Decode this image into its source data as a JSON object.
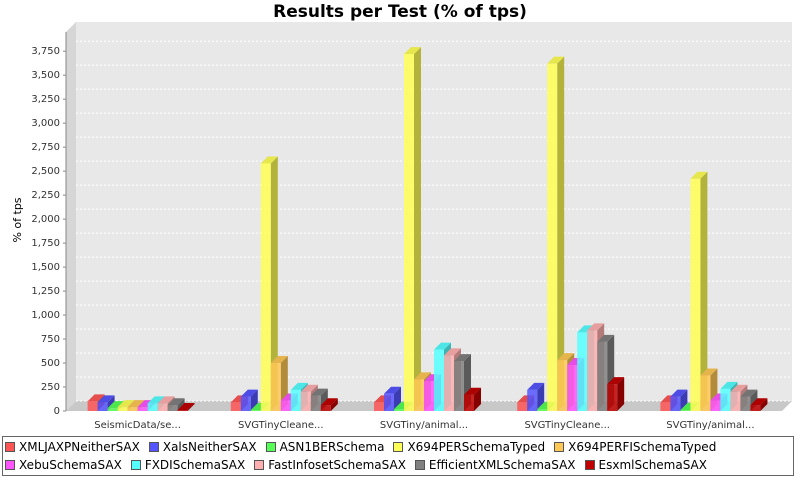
{
  "chart_data": {
    "type": "bar3d",
    "title": "Results per Test (% of tps)",
    "y_label": "% of tps",
    "categories": [
      "SeismicData/se...",
      "SVGTinyCleane...",
      "SVGTiny/animal...",
      "SVGTinyCleane...",
      "SVGTiny/animal..."
    ],
    "series": [
      {
        "name": "XMLJAXPNeitherSAX",
        "color": "#ff5555",
        "values": [
          100,
          90,
          90,
          90,
          90
        ]
      },
      {
        "name": "XalsNeitherSAX",
        "color": "#5555ff",
        "values": [
          90,
          150,
          180,
          220,
          150
        ]
      },
      {
        "name": "ASN1BERSchema",
        "color": "#55ff55",
        "values": [
          30,
          10,
          20,
          20,
          10
        ]
      },
      {
        "name": "X694PERSchemaTyped",
        "color": "#ffff55",
        "values": [
          40,
          2580,
          3720,
          3620,
          2420
        ]
      },
      {
        "name": "X694PERFISchemaTyped",
        "color": "#ffc855",
        "values": [
          40,
          500,
          330,
          530,
          370
        ]
      },
      {
        "name": "XebuSchemaSAX",
        "color": "#ff55ff",
        "values": [
          40,
          110,
          310,
          480,
          110
        ]
      },
      {
        "name": "FXDISchemaSAX",
        "color": "#55ffff",
        "values": [
          80,
          220,
          640,
          820,
          230
        ]
      },
      {
        "name": "FastInfosetSchemaSAX",
        "color": "#ffafaf",
        "values": [
          80,
          200,
          580,
          840,
          200
        ]
      },
      {
        "name": "EfficientXMLSchemaSAX",
        "color": "#808080",
        "values": [
          60,
          160,
          520,
          720,
          150
        ]
      },
      {
        "name": "EsxmlSchemaSAX",
        "color": "#c00000",
        "values": [
          10,
          60,
          170,
          280,
          60
        ]
      }
    ],
    "ylim": [
      0,
      3950
    ],
    "yticks": [
      0,
      250,
      500,
      750,
      {
        "value": 1000,
        "label": "1,000"
      },
      {
        "value": 1250,
        "label": "1,250"
      },
      {
        "value": 1500,
        "label": "1,500"
      },
      {
        "value": 1750,
        "label": "1,750"
      },
      {
        "value": 2000,
        "label": "2,000"
      },
      {
        "value": 2250,
        "label": "2,250"
      },
      {
        "value": 2500,
        "label": "2,500"
      },
      {
        "value": 2750,
        "label": "2,750"
      },
      {
        "value": 3000,
        "label": "3,000"
      },
      {
        "value": 3250,
        "label": "3,250"
      },
      {
        "value": 3500,
        "label": "3,500"
      },
      {
        "value": 3750,
        "label": "3,750"
      }
    ],
    "grid": true
  }
}
